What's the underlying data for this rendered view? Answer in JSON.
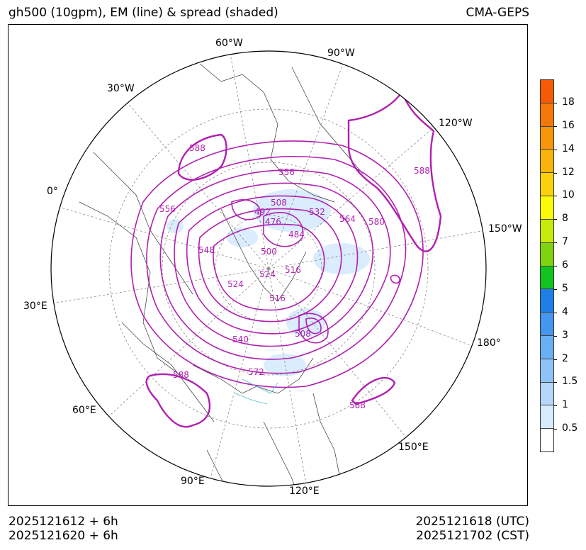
{
  "header": {
    "title_left": "gh500 (10gpm), EM (line) & spread (shaded)",
    "title_right": "CMA-GEPS"
  },
  "footer": {
    "init_utc": "2025121612 + 6h",
    "init_cst": "2025121620 + 6h",
    "valid_utc": "2025121618 (UTC)",
    "valid_cst": "2025121702 (CST)"
  },
  "map": {
    "projection": "north-polar-stereographic",
    "longitude_labels": [
      "60°W",
      "90°W",
      "30°W",
      "120°W",
      "0°",
      "150°W",
      "30°E",
      "180°",
      "60°E",
      "150°E",
      "90°E",
      "120°E"
    ],
    "contour_labels": [
      "588",
      "556",
      "556",
      "508",
      "532",
      "564",
      "580",
      "588",
      "492",
      "476",
      "484",
      "500",
      "548",
      "516",
      "524",
      "524",
      "516",
      "540",
      "508",
      "572",
      "588",
      "588"
    ],
    "contour_color": "#b020b0"
  },
  "colorbar": {
    "ticks": [
      "0.5",
      "1",
      "1.5",
      "2",
      "3",
      "4",
      "5",
      "6",
      "7",
      "8",
      "10",
      "12",
      "14",
      "16",
      "18"
    ],
    "colors": [
      "#ffffff",
      "#d6ebfd",
      "#b4d7fb",
      "#8ec3f7",
      "#6aaef3",
      "#4496ee",
      "#1f7fe8",
      "#12c41f",
      "#7fd40e",
      "#c8ea0a",
      "#fafa0a",
      "#fad10a",
      "#f8b40a",
      "#f7960a",
      "#f7780a",
      "#f75a06"
    ]
  }
}
